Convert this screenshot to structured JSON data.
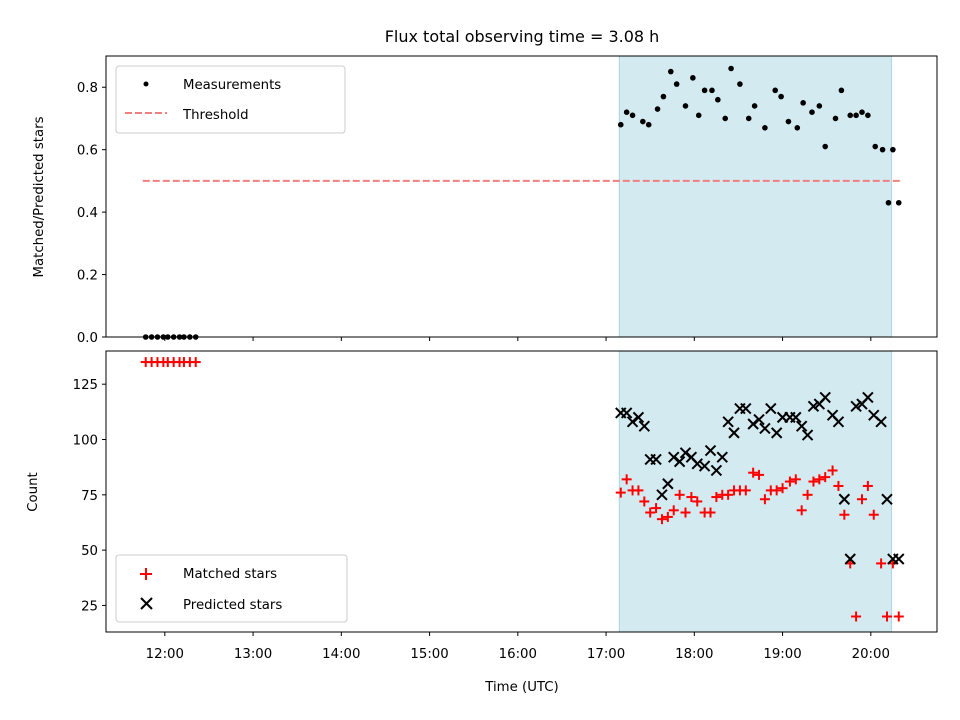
{
  "chart_data": [
    {
      "type": "scatter",
      "title": "Flux total observing time = 3.08 h",
      "ylabel": "Matched/Predicted stars",
      "ylim": [
        0,
        0.9
      ],
      "yticks": [
        0.0,
        0.2,
        0.4,
        0.6,
        0.8
      ],
      "ytick_labels": [
        "0.0",
        "0.2",
        "0.4",
        "0.6",
        "0.8"
      ],
      "shaded_interval": [
        "17:09",
        "20:14"
      ],
      "shade_color": "#d4eaf1",
      "legend_position": "upper left",
      "series": [
        {
          "name": "Measurements",
          "marker": "dot",
          "color": "#000000",
          "x": [
            "11:47",
            "11:51",
            "11:55",
            "11:59",
            "12:02",
            "12:06",
            "12:10",
            "12:13",
            "12:17",
            "12:21",
            "17:10",
            "17:14",
            "17:18",
            "17:25",
            "17:29",
            "17:35",
            "17:39",
            "17:44",
            "17:48",
            "17:54",
            "17:59",
            "18:03",
            "18:07",
            "18:12",
            "18:16",
            "18:21",
            "18:25",
            "18:31",
            "18:37",
            "18:41",
            "18:48",
            "18:55",
            "18:59",
            "19:04",
            "19:10",
            "19:14",
            "19:20",
            "19:25",
            "19:29",
            "19:36",
            "19:40",
            "19:46",
            "19:50",
            "19:54",
            "19:58",
            "20:03",
            "20:08",
            "20:12",
            "20:15",
            "20:19"
          ],
          "y": [
            0,
            0,
            0,
            0,
            0,
            0,
            0,
            0,
            0,
            0,
            0.68,
            0.72,
            0.71,
            0.69,
            0.68,
            0.73,
            0.77,
            0.85,
            0.81,
            0.74,
            0.83,
            0.71,
            0.79,
            0.79,
            0.76,
            0.7,
            0.86,
            0.81,
            0.7,
            0.74,
            0.67,
            0.79,
            0.77,
            0.69,
            0.67,
            0.75,
            0.72,
            0.74,
            0.61,
            0.7,
            0.79,
            0.71,
            0.71,
            0.72,
            0.71,
            0.61,
            0.6,
            0.43,
            0.6,
            0.43
          ]
        },
        {
          "name": "Threshold",
          "style": "dashed",
          "color": "#f08080",
          "x": [
            "11:45",
            "20:20"
          ],
          "y": [
            0.5,
            0.5
          ]
        }
      ]
    },
    {
      "type": "scatter",
      "xlabel": "Time (UTC)",
      "ylabel": "Count",
      "ylim": [
        13,
        140
      ],
      "yticks": [
        25,
        50,
        75,
        100,
        125
      ],
      "ytick_labels": [
        "25",
        "50",
        "75",
        "100",
        "125"
      ],
      "xlim": [
        "11:20",
        "20:45"
      ],
      "xticks": [
        "12:00",
        "13:00",
        "14:00",
        "15:00",
        "16:00",
        "17:00",
        "18:00",
        "19:00",
        "20:00"
      ],
      "xtick_labels": [
        "12:00",
        "13:00",
        "14:00",
        "15:00",
        "16:00",
        "17:00",
        "18:00",
        "19:00",
        "20:00"
      ],
      "shaded_interval": [
        "17:09",
        "20:14"
      ],
      "shade_color": "#d4eaf1",
      "legend_position": "lower left",
      "series": [
        {
          "name": "Matched stars",
          "marker": "plus",
          "color": "#ff0000",
          "x": [
            "11:47",
            "11:51",
            "11:55",
            "11:59",
            "12:02",
            "12:06",
            "12:10",
            "12:13",
            "12:17",
            "12:21",
            "17:10",
            "17:14",
            "17:18",
            "17:22",
            "17:26",
            "17:30",
            "17:34",
            "17:38",
            "17:42",
            "17:46",
            "17:50",
            "17:54",
            "17:58",
            "18:02",
            "18:07",
            "18:11",
            "18:15",
            "18:19",
            "18:23",
            "18:27",
            "18:31",
            "18:35",
            "18:40",
            "18:44",
            "18:48",
            "18:52",
            "18:56",
            "19:00",
            "19:05",
            "19:09",
            "19:13",
            "19:17",
            "19:21",
            "19:25",
            "19:29",
            "19:34",
            "19:38",
            "19:42",
            "19:46",
            "19:50",
            "19:54",
            "19:58",
            "20:02",
            "20:07",
            "20:11",
            "20:15",
            "20:19"
          ],
          "y": [
            135,
            135,
            135,
            135,
            135,
            135,
            135,
            135,
            135,
            135,
            76,
            82,
            77,
            77,
            72,
            67,
            69,
            64,
            65,
            68,
            75,
            67,
            74,
            72,
            67,
            67,
            74,
            75,
            75,
            77,
            77,
            77,
            85,
            84,
            73,
            77,
            77,
            78,
            81,
            82,
            68,
            75,
            81,
            82,
            83,
            86,
            79,
            66,
            44,
            20,
            73,
            79,
            66,
            44,
            20,
            44,
            20
          ]
        },
        {
          "name": "Predicted stars",
          "marker": "x",
          "color": "#000000",
          "x": [
            "17:10",
            "17:14",
            "17:18",
            "17:22",
            "17:26",
            "17:30",
            "17:34",
            "17:38",
            "17:42",
            "17:46",
            "17:50",
            "17:54",
            "17:58",
            "18:02",
            "18:07",
            "18:11",
            "18:15",
            "18:19",
            "18:23",
            "18:27",
            "18:31",
            "18:35",
            "18:40",
            "18:44",
            "18:48",
            "18:52",
            "18:56",
            "19:00",
            "19:05",
            "19:09",
            "19:13",
            "19:17",
            "19:21",
            "19:25",
            "19:29",
            "19:34",
            "19:38",
            "19:42",
            "19:46",
            "19:50",
            "19:54",
            "19:58",
            "20:02",
            "20:07",
            "20:11",
            "20:15",
            "20:19"
          ],
          "y": [
            112,
            112,
            108,
            110,
            106,
            91,
            91,
            75,
            80,
            92,
            90,
            94,
            92,
            89,
            88,
            95,
            86,
            92,
            108,
            103,
            114,
            114,
            107,
            109,
            105,
            114,
            103,
            110,
            110,
            110,
            106,
            102,
            115,
            116,
            119,
            111,
            108,
            73,
            46,
            115,
            116,
            119,
            111,
            108,
            73,
            46,
            46
          ]
        }
      ]
    }
  ]
}
